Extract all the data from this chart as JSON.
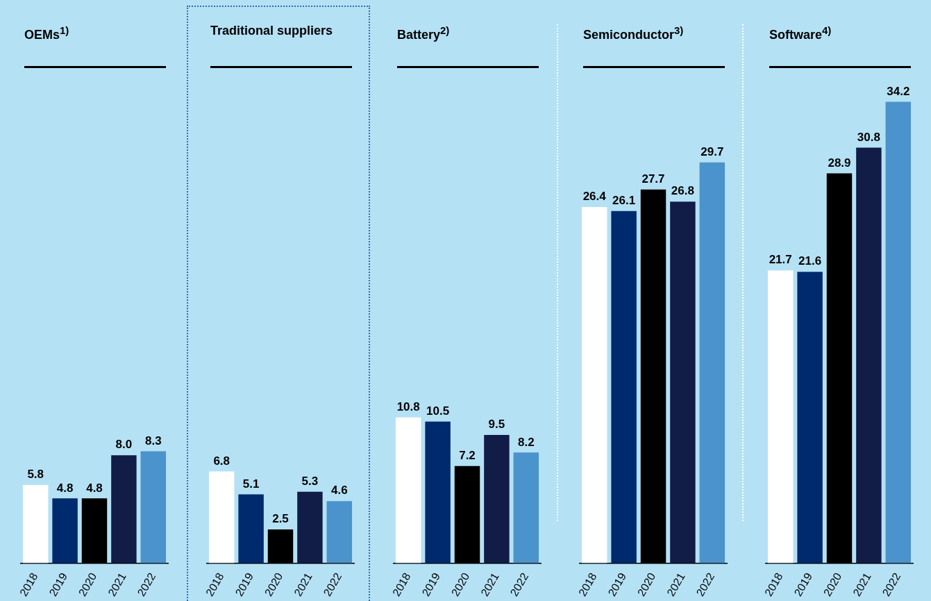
{
  "chart_data": [
    {
      "type": "bar",
      "title": "OEMs$^{1)}$",
      "categories": [
        "2018",
        "2019",
        "2020",
        "2021",
        "2022"
      ],
      "values": [
        5.8,
        4.8,
        4.8,
        8.0,
        8.3
      ],
      "value_labels": [
        "5.8",
        "4.8",
        "4.8",
        "8.0",
        "8.3"
      ],
      "colors": [
        "#ffffff",
        "#002a6e",
        "#000000",
        "#111d47",
        "#4b93cc"
      ]
    },
    {
      "type": "bar",
      "title": "Traditional suppliers",
      "categories": [
        "2018",
        "2019",
        "2020",
        "2021",
        "2022"
      ],
      "values": [
        6.8,
        5.1,
        2.5,
        5.3,
        4.6
      ],
      "value_labels": [
        "6.8",
        "5.1",
        "2.5",
        "5.3",
        "4.6"
      ],
      "colors": [
        "#ffffff",
        "#002a6e",
        "#000000",
        "#111d47",
        "#4b93cc"
      ]
    },
    {
      "type": "bar",
      "title": "Battery$^{2)}$",
      "categories": [
        "2018",
        "2019",
        "2020",
        "2021",
        "2022"
      ],
      "values": [
        10.8,
        10.5,
        7.2,
        9.5,
        8.2
      ],
      "value_labels": [
        "10.8",
        "10.5",
        "7.2",
        "9.5",
        "8.2"
      ],
      "colors": [
        "#ffffff",
        "#002a6e",
        "#000000",
        "#111d47",
        "#4b93cc"
      ]
    },
    {
      "type": "bar",
      "title": "Semiconductor$^{3)}$",
      "categories": [
        "2018",
        "2019",
        "2020",
        "2021",
        "2022"
      ],
      "values": [
        26.4,
        26.1,
        27.7,
        26.8,
        29.7
      ],
      "value_labels": [
        "26.4",
        "26.1",
        "27.7",
        "26.8",
        "29.7"
      ],
      "colors": [
        "#ffffff",
        "#002a6e",
        "#000000",
        "#111d47",
        "#4b93cc"
      ]
    },
    {
      "type": "bar",
      "title": "Software$^{4)}$",
      "categories": [
        "2018",
        "2019",
        "2020",
        "2021",
        "2022"
      ],
      "values": [
        21.7,
        21.6,
        28.9,
        30.8,
        34.2
      ],
      "value_labels": [
        "21.7",
        "21.6",
        "28.9",
        "30.8",
        "34.2"
      ],
      "colors": [
        "#ffffff",
        "#002a6e",
        "#000000",
        "#111d47",
        "#4b93cc"
      ]
    }
  ]
}
